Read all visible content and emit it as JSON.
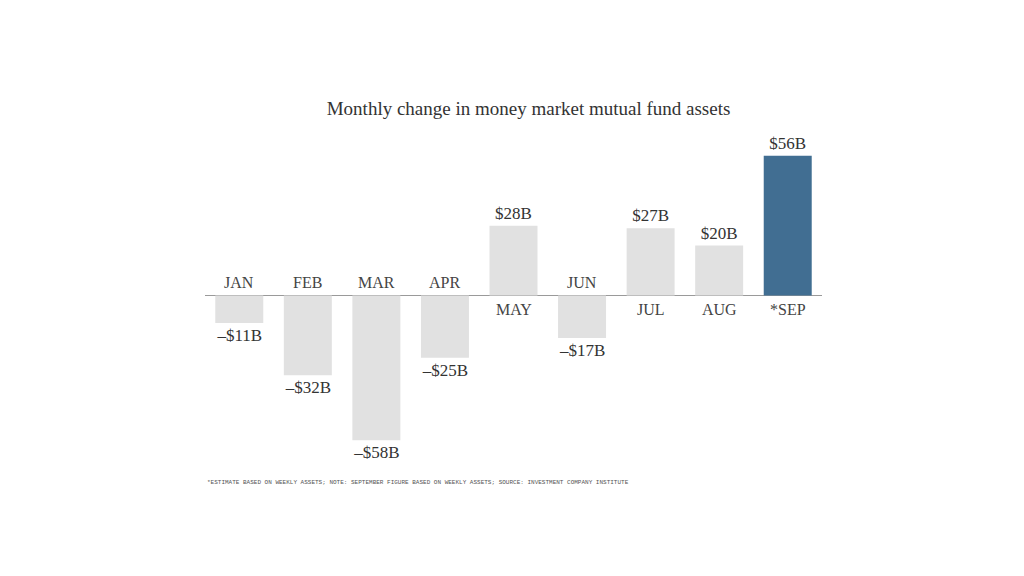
{
  "chart_data": {
    "type": "bar",
    "title": "Monthly change in money market mutual fund assets",
    "categories": [
      "JAN",
      "FEB",
      "MAR",
      "APR",
      "MAY",
      "JUN",
      "JUL",
      "AUG",
      "*SEP"
    ],
    "values": [
      -11,
      -32,
      -58,
      -25,
      28,
      -17,
      27,
      20,
      56
    ],
    "value_labels": [
      "–$11B",
      "–$32B",
      "–$58B",
      "–$25B",
      "$28B",
      "–$17B",
      "$27B",
      "$20B",
      "$56B"
    ],
    "colors": [
      "#e1e1e1",
      "#e1e1e1",
      "#e1e1e1",
      "#e1e1e1",
      "#e1e1e1",
      "#e1e1e1",
      "#e1e1e1",
      "#e1e1e1",
      "#416e92"
    ],
    "data_labels": true,
    "tick_labels": "x",
    "grid": false,
    "footnote": "*ESTIMATE BASED ON WEEKLY ASSETS; NOTE: SEPTEMBER FIGURE BASED ON WEEKLY ASSETS; SOURCE: INVESTMENT COMPANY INSTITUTE"
  }
}
